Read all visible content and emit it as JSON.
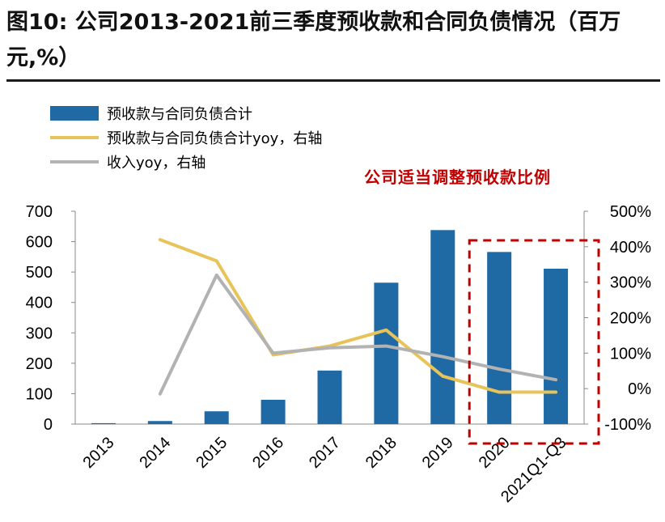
{
  "title": "图10: 公司2013-2021前三季度预收款和合同负债情况（百万元,%）",
  "annotation": "公司适当调整预收款比例",
  "colors": {
    "bar": "#1F6AA5",
    "line_gold": "#E8C35A",
    "line_gray": "#B2B2B2",
    "highlight": "#C00000"
  },
  "chart_data": {
    "type": "bar",
    "categories": [
      "2013",
      "2014",
      "2015",
      "2016",
      "2017",
      "2018",
      "2019",
      "2020",
      "2021Q1-Q3"
    ],
    "series": [
      {
        "name": "预收款与合同负债合计",
        "type": "bar",
        "axis": "left",
        "values": [
          3,
          10,
          42,
          80,
          176,
          465,
          638,
          566,
          511
        ]
      },
      {
        "name": "预收款与合同负债合计yoy，右轴",
        "type": "line",
        "axis": "right",
        "values": [
          null,
          420,
          360,
          95,
          120,
          165,
          35,
          -10,
          -10
        ]
      },
      {
        "name": "收入yoy，右轴",
        "type": "line",
        "axis": "right",
        "values": [
          null,
          -15,
          320,
          100,
          115,
          120,
          90,
          55,
          25
        ]
      }
    ],
    "ylim_left": [
      0,
      700
    ],
    "yticks_left": [
      "0",
      "100",
      "200",
      "300",
      "400",
      "500",
      "600",
      "700"
    ],
    "ylim_right": [
      -100,
      500
    ],
    "yticks_right": [
      "-100%",
      "0%",
      "100%",
      "200%",
      "300%",
      "400%",
      "500%"
    ],
    "grid": false,
    "legend": "top-left"
  }
}
